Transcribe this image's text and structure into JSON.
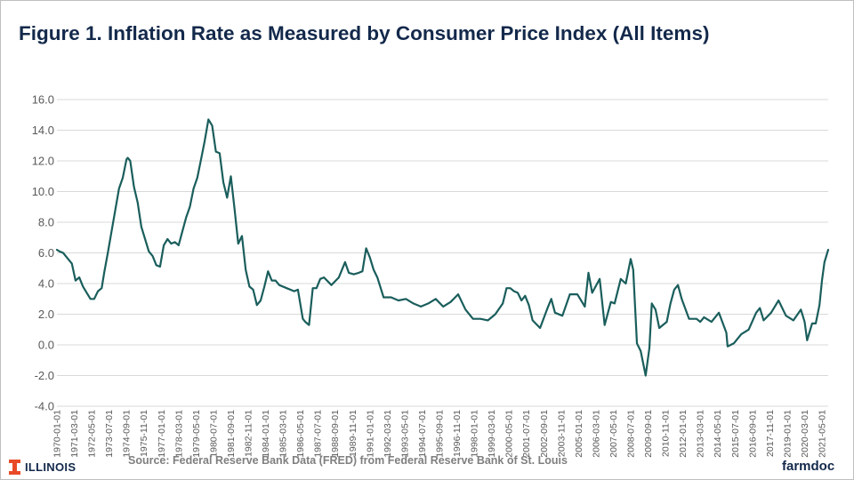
{
  "title": "Figure 1.  Inflation Rate as Measured by Consumer Price Index (All Items)",
  "source": "Source: Federal Reserve Bank Data (FRED) from Federal Reserve Bank of St. Louis",
  "logos": {
    "illinois": "ILLINOIS",
    "farmdoc": "farmdoc"
  },
  "colors": {
    "line": "#1a5e5c",
    "title": "#13294b",
    "gridline": "#d9d9d9",
    "tick_text": "#595959",
    "illinois_orange": "#e84a27"
  },
  "chart_data": {
    "type": "line",
    "title": "Figure 1.  Inflation Rate as Measured by Consumer Price Index (All Items)",
    "xlabel": "",
    "ylabel": "",
    "ylim": [
      -4.0,
      16.0
    ],
    "y_ticks": [
      "-4.0",
      "-2.0",
      "0.0",
      "2.0",
      "4.0",
      "6.0",
      "8.0",
      "10.0",
      "12.0",
      "14.0",
      "16.0"
    ],
    "x_tick_labels": [
      "1970-01-01",
      "1971-03-01",
      "1972-05-01",
      "1973-07-01",
      "1974-09-01",
      "1975-11-01",
      "1977-01-01",
      "1978-03-01",
      "1979-05-01",
      "1980-07-01",
      "1981-09-01",
      "1982-11-01",
      "1984-01-01",
      "1985-03-01",
      "1986-05-01",
      "1987-07-01",
      "1988-09-01",
      "1989-11-01",
      "1991-01-01",
      "1992-03-01",
      "1993-05-01",
      "1994-07-01",
      "1995-09-01",
      "1996-11-01",
      "1998-01-01",
      "1999-03-01",
      "2000-05-01",
      "2001-07-01",
      "2002-09-01",
      "2003-11-01",
      "2005-01-01",
      "2006-03-01",
      "2007-05-01",
      "2008-07-01",
      "2009-09-01",
      "2010-11-01",
      "2012-01-01",
      "2013-03-01",
      "2014-05-01",
      "2015-07-01",
      "2016-09-01",
      "2017-11-01",
      "2019-01-01",
      "2020-03-01",
      "2021-05-01"
    ],
    "grid": true,
    "legend": "none",
    "series": [
      {
        "x": [
          "1970-01",
          "1970-03",
          "1970-06",
          "1970-09",
          "1971-01",
          "1971-04",
          "1971-07",
          "1971-10",
          "1972-01",
          "1972-04",
          "1972-07",
          "1972-10",
          "1973-01",
          "1973-03",
          "1973-06",
          "1973-09",
          "1973-12",
          "1974-03",
          "1974-06",
          "1974-09",
          "1974-10",
          "1974-12",
          "1975-03",
          "1975-06",
          "1975-09",
          "1975-12",
          "1976-03",
          "1976-06",
          "1976-09",
          "1976-12",
          "1977-03",
          "1977-06",
          "1977-09",
          "1977-12",
          "1978-03",
          "1978-06",
          "1978-09",
          "1978-12",
          "1979-03",
          "1979-06",
          "1979-09",
          "1979-12",
          "1980-03",
          "1980-06",
          "1980-09",
          "1980-12",
          "1981-03",
          "1981-06",
          "1981-09",
          "1981-12",
          "1982-03",
          "1982-06",
          "1982-09",
          "1982-12",
          "1983-03",
          "1983-06",
          "1983-09",
          "1983-12",
          "1984-03",
          "1984-06",
          "1984-09",
          "1984-12",
          "1985-06",
          "1985-12",
          "1986-03",
          "1986-07",
          "1986-09",
          "1986-12",
          "1987-03",
          "1987-06",
          "1987-09",
          "1987-12",
          "1988-06",
          "1988-12",
          "1989-05",
          "1989-08",
          "1989-12",
          "1990-04",
          "1990-07",
          "1990-10",
          "1991-01",
          "1991-04",
          "1991-07",
          "1991-12",
          "1992-06",
          "1992-12",
          "1993-06",
          "1993-12",
          "1994-06",
          "1994-12",
          "1995-06",
          "1995-12",
          "1996-06",
          "1996-12",
          "1997-06",
          "1997-12",
          "1998-06",
          "1998-12",
          "1999-06",
          "1999-12",
          "2000-03",
          "2000-06",
          "2000-09",
          "2000-12",
          "2001-03",
          "2001-06",
          "2001-09",
          "2001-12",
          "2002-06",
          "2002-12",
          "2003-03",
          "2003-06",
          "2003-12",
          "2004-06",
          "2004-12",
          "2005-06",
          "2005-09",
          "2005-12",
          "2006-06",
          "2006-10",
          "2007-03",
          "2007-06",
          "2007-11",
          "2008-03",
          "2008-07",
          "2008-09",
          "2008-12",
          "2009-03",
          "2009-07",
          "2009-10",
          "2009-12",
          "2010-03",
          "2010-06",
          "2010-12",
          "2011-03",
          "2011-06",
          "2011-09",
          "2011-12",
          "2012-06",
          "2012-12",
          "2013-03",
          "2013-06",
          "2013-12",
          "2014-06",
          "2014-12",
          "2015-01",
          "2015-06",
          "2015-12",
          "2016-06",
          "2016-12",
          "2017-03",
          "2017-06",
          "2017-12",
          "2018-06",
          "2018-12",
          "2019-06",
          "2019-12",
          "2020-03",
          "2020-05",
          "2020-09",
          "2020-12",
          "2021-03",
          "2021-05",
          "2021-07",
          "2021-10"
        ],
        "values": [
          6.2,
          6.1,
          6.0,
          5.7,
          5.3,
          4.2,
          4.4,
          3.8,
          3.4,
          3.0,
          3.0,
          3.5,
          3.7,
          4.7,
          6.0,
          7.4,
          8.8,
          10.2,
          10.9,
          12.1,
          12.2,
          12.0,
          10.3,
          9.3,
          7.7,
          6.9,
          6.1,
          5.8,
          5.2,
          5.1,
          6.5,
          6.9,
          6.6,
          6.7,
          6.5,
          7.4,
          8.3,
          9.0,
          10.2,
          10.9,
          12.1,
          13.3,
          14.7,
          14.3,
          12.6,
          12.5,
          10.6,
          9.6,
          11.0,
          8.9,
          6.6,
          7.1,
          4.9,
          3.8,
          3.6,
          2.6,
          2.9,
          3.8,
          4.8,
          4.2,
          4.2,
          3.9,
          3.7,
          3.5,
          3.6,
          1.7,
          1.5,
          1.3,
          3.7,
          3.7,
          4.3,
          4.4,
          3.9,
          4.4,
          5.4,
          4.7,
          4.6,
          4.7,
          4.8,
          6.3,
          5.7,
          4.9,
          4.4,
          3.1,
          3.1,
          2.9,
          3.0,
          2.7,
          2.5,
          2.7,
          3.0,
          2.5,
          2.8,
          3.3,
          2.3,
          1.7,
          1.7,
          1.6,
          2.0,
          2.7,
          3.7,
          3.7,
          3.5,
          3.4,
          2.9,
          3.2,
          2.6,
          1.6,
          1.1,
          2.4,
          3.0,
          2.1,
          1.9,
          3.3,
          3.3,
          2.5,
          4.7,
          3.4,
          4.3,
          1.3,
          2.8,
          2.7,
          4.3,
          4.0,
          5.6,
          4.9,
          0.1,
          -0.4,
          -2.0,
          -0.2,
          2.7,
          2.3,
          1.1,
          1.5,
          2.7,
          3.6,
          3.9,
          3.0,
          1.7,
          1.7,
          1.5,
          1.8,
          1.5,
          2.1,
          0.8,
          -0.1,
          0.1,
          0.7,
          1.0,
          2.1,
          2.4,
          1.6,
          2.1,
          2.9,
          1.9,
          1.6,
          2.3,
          1.5,
          0.3,
          1.4,
          1.4,
          2.6,
          4.2,
          5.4,
          6.2
        ]
      }
    ]
  }
}
